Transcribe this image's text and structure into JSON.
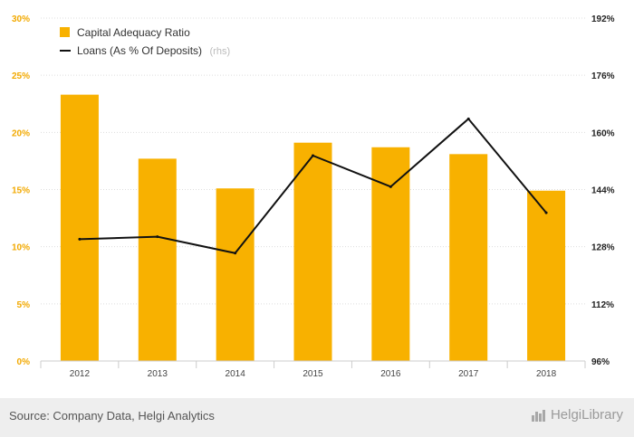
{
  "chart_data": {
    "type": "bar+line",
    "categories": [
      "2012",
      "2013",
      "2014",
      "2015",
      "2016",
      "2017",
      "2018"
    ],
    "series": [
      {
        "name": "Capital Adequacy Ratio",
        "type": "bar",
        "axis": "left",
        "color": "#f8b100",
        "values": [
          23.3,
          17.7,
          15.1,
          19.1,
          18.7,
          18.1,
          14.9
        ]
      },
      {
        "name": "Loans (As % Of Deposits)",
        "name_note": "(rhs)",
        "type": "line",
        "axis": "right",
        "color": "#111111",
        "values": [
          130.1,
          130.8,
          126.2,
          153.5,
          144.8,
          163.8,
          137.5
        ]
      }
    ],
    "y_left": {
      "ticks": [
        "0%",
        "5%",
        "10%",
        "15%",
        "20%",
        "25%",
        "30%"
      ],
      "range": [
        0,
        30
      ]
    },
    "y_right": {
      "ticks": [
        "96%",
        "112%",
        "128%",
        "144%",
        "160%",
        "176%",
        "192%"
      ],
      "range": [
        96,
        192
      ]
    },
    "grid": "horizontal-dotted",
    "legend_position": "top-left"
  },
  "footer": {
    "source": "Source: Company Data, Helgi Analytics",
    "brand": "HelgiLibrary"
  },
  "icons": {
    "brand_logo": "helgi-logo-icon"
  }
}
